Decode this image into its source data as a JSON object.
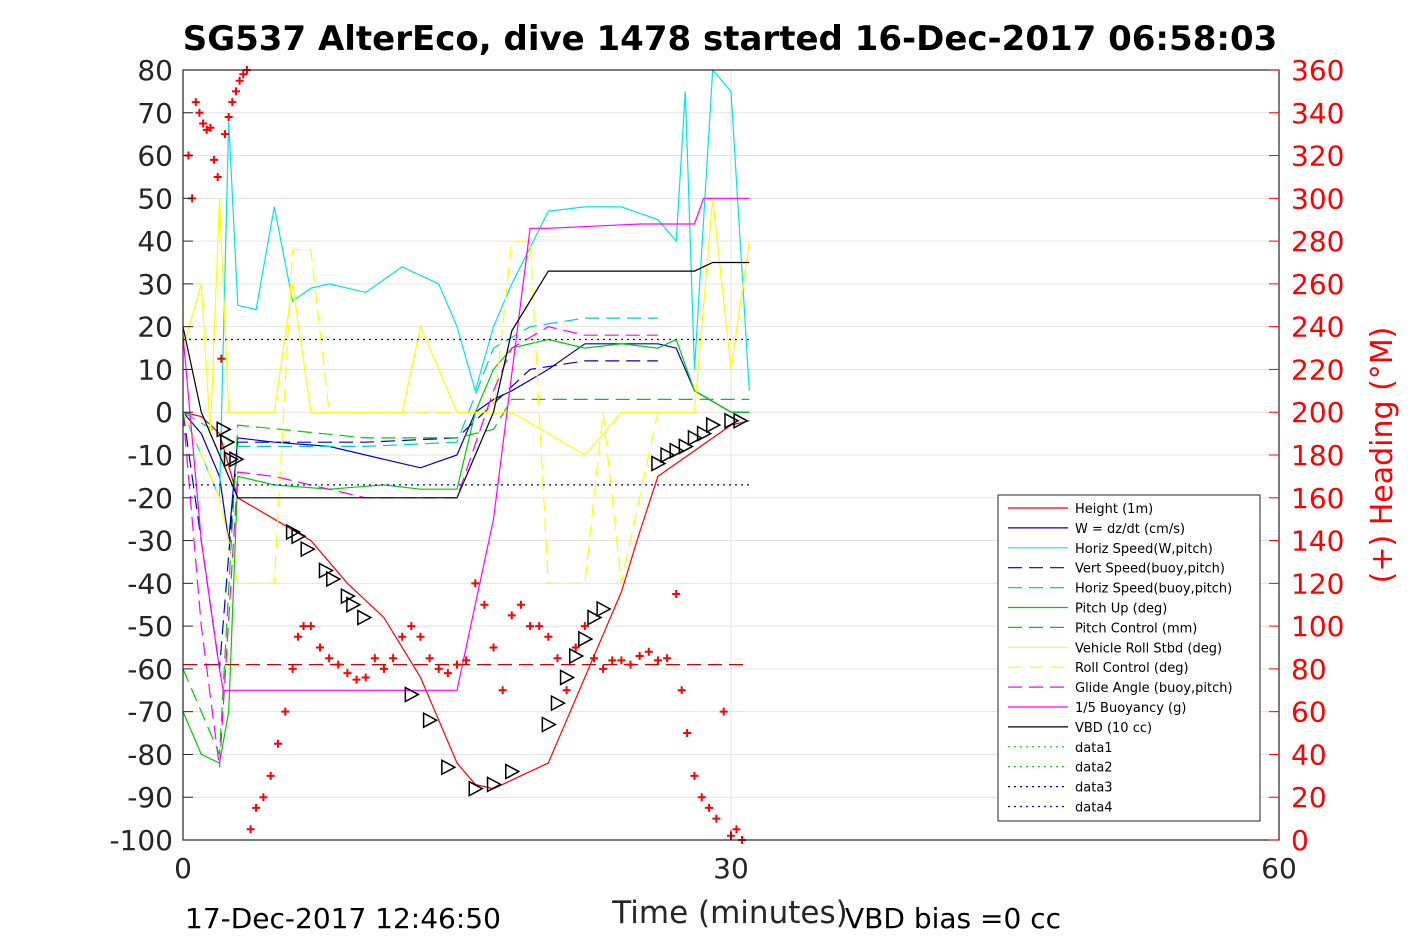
{
  "chart_data": {
    "type": "line",
    "title": "SG537 AlterEco, dive 1478 started 16-Dec-2017 06:58:03",
    "xlabel": "Time (minutes)",
    "ylabel": "",
    "y2label": "(+) Heading (°M)",
    "xlim": [
      0,
      60
    ],
    "ylim": [
      -100,
      80
    ],
    "y2lim": [
      0,
      360
    ],
    "xticks": [
      "0",
      "30",
      "60"
    ],
    "yticks": [
      "80",
      "70",
      "60",
      "50",
      "40",
      "30",
      "20",
      "10",
      "0",
      "-10",
      "-20",
      "-30",
      "-40",
      "-50",
      "-60",
      "-70",
      "-80",
      "-90",
      "-100"
    ],
    "y2ticks": [
      "360",
      "340",
      "320",
      "300",
      "280",
      "260",
      "240",
      "220",
      "200",
      "180",
      "160",
      "140",
      "120",
      "100",
      "80",
      "60",
      "40",
      "20",
      "0"
    ],
    "grid": true,
    "legend_position": "lower-right",
    "footer_left": "17-Dec-2017 12:46:50",
    "footer_right": "VBD bias =0 cc",
    "series": [
      {
        "name": "Height (1m)",
        "color": "#ff0000",
        "style": "solid",
        "x": [
          0,
          1,
          2,
          3,
          5,
          7,
          9,
          11,
          13,
          15,
          16,
          17,
          18,
          20,
          21,
          22,
          23,
          24,
          25,
          26,
          27,
          28,
          29,
          30,
          31
        ],
        "y": [
          0,
          -1,
          -5,
          -20,
          -25,
          -30,
          -40,
          -48,
          -62,
          -82,
          -87,
          -88,
          -86,
          -82,
          -72,
          -62,
          -52,
          -42,
          -28,
          -15,
          -12,
          -9,
          -6,
          -3,
          -2
        ]
      },
      {
        "name": "W = dz/dt (cm/s)",
        "color": "#0000cc",
        "style": "solid",
        "x": [
          0,
          1,
          2,
          2.5,
          3,
          5,
          8,
          11,
          13,
          15,
          16,
          17,
          18,
          20,
          22,
          24,
          26,
          27,
          28,
          30,
          31
        ],
        "y": [
          0,
          -5,
          -15,
          -30,
          -6,
          -7,
          -8,
          -11,
          -13,
          -10,
          0,
          3,
          5,
          10,
          16,
          16,
          16,
          15,
          5,
          0,
          0
        ]
      },
      {
        "name": "Horiz Speed(W,pitch)",
        "color": "#00e5e5",
        "style": "solid",
        "x": [
          0,
          1,
          2,
          2.5,
          3,
          4,
          5,
          6,
          7,
          8,
          10,
          12,
          14,
          15,
          16,
          17,
          18,
          20,
          22,
          24,
          26,
          27,
          27.5,
          28,
          29,
          30,
          31
        ],
        "y": [
          0,
          -10,
          -20,
          68,
          25,
          24,
          48,
          26,
          29,
          30,
          28,
          34,
          30,
          20,
          5,
          20,
          30,
          47,
          48,
          48,
          45,
          40,
          75,
          10,
          80,
          75,
          5
        ]
      },
      {
        "name": "Vert Speed(buoy,pitch)",
        "color": "#0000cc",
        "style": "dashed",
        "x": [
          0,
          2,
          3,
          5,
          10,
          15,
          17,
          19,
          22,
          26
        ],
        "y": [
          0,
          -60,
          -7,
          -7,
          -7,
          -6,
          2,
          10,
          12,
          12
        ]
      },
      {
        "name": "Horiz Speed(buoy,pitch)",
        "color": "#00cccc",
        "style": "dashed",
        "x": [
          0,
          2,
          3,
          5,
          10,
          15,
          17,
          19,
          22,
          26
        ],
        "y": [
          0,
          -5,
          -8,
          -8,
          -8,
          -7,
          15,
          20,
          22,
          22
        ]
      },
      {
        "name": "Pitch Up (deg)",
        "color": "#00cc00",
        "style": "solid",
        "x": [
          0,
          1,
          2,
          2.5,
          3,
          5,
          8,
          11,
          13,
          15,
          16,
          17,
          18,
          20,
          22,
          24,
          26,
          27,
          28,
          30,
          31
        ],
        "y": [
          -70,
          -80,
          -82,
          -70,
          -15,
          -17,
          -18,
          -17,
          -18,
          -18,
          0,
          10,
          15,
          17,
          15,
          16,
          15,
          17,
          5,
          0,
          0
        ]
      },
      {
        "name": "Pitch Control (mm)",
        "color": "#00cc00",
        "style": "dashed",
        "x": [
          0,
          2,
          3,
          10,
          15,
          17,
          18,
          26,
          27,
          31
        ],
        "y": [
          -60,
          -80,
          -3,
          -6,
          -6,
          -4,
          3,
          3,
          3,
          3
        ]
      },
      {
        "name": "Vehicle Roll Stbd (deg)",
        "color": "#ffff00",
        "style": "solid",
        "x": [
          0,
          1,
          1.5,
          2,
          2.5,
          3,
          5,
          6,
          7,
          8,
          10,
          12,
          13,
          15,
          16,
          18,
          20,
          22,
          24,
          26,
          28,
          29,
          30,
          31
        ],
        "y": [
          15,
          30,
          -5,
          50,
          0,
          0,
          0,
          30,
          0,
          0,
          0,
          0,
          20,
          0,
          0,
          0,
          -5,
          -10,
          0,
          0,
          0,
          50,
          10,
          40
        ]
      },
      {
        "name": "Roll Control (deg)",
        "color": "#ffff00",
        "style": "dashed",
        "x": [
          0,
          2,
          3,
          5,
          6,
          7,
          8,
          10,
          12,
          13,
          15,
          17,
          18,
          19,
          20,
          22,
          23,
          24,
          26
        ],
        "y": [
          0,
          -20,
          -40,
          -40,
          38,
          38,
          0,
          0,
          0,
          0,
          0,
          0,
          40,
          40,
          -40,
          -40,
          0,
          -40,
          0
        ]
      },
      {
        "name": "Glide Angle (buoy,pitch)",
        "color": "#ff00ff",
        "style": "dashed",
        "x": [
          0,
          1,
          2,
          3,
          5,
          10,
          15,
          17,
          18,
          20,
          22,
          26
        ],
        "y": [
          0,
          -50,
          -83,
          -14,
          -15,
          -20,
          -20,
          5,
          15,
          20,
          18,
          18
        ]
      },
      {
        "name": "1/5 Buoyancy (g)",
        "color": "#ff00ff",
        "style": "solid",
        "x": [
          0,
          1,
          2,
          2.2,
          12,
          15,
          17,
          19,
          20,
          25,
          28,
          28.5,
          31
        ],
        "y": [
          18,
          -30,
          -60,
          -65,
          -65,
          -65,
          -25,
          43,
          43,
          44,
          44,
          50,
          50
        ]
      },
      {
        "name": "VBD (10 cc)",
        "color": "#000000",
        "style": "solid",
        "x": [
          0,
          1,
          2,
          3,
          15,
          16,
          17,
          18,
          19,
          20,
          28,
          29,
          31
        ],
        "y": [
          20,
          0,
          -10,
          -20,
          -20,
          -10,
          0,
          19,
          26,
          33,
          33,
          35,
          35
        ]
      },
      {
        "name": "data1",
        "color": "#00cc00",
        "style": "dotted",
        "x": [],
        "y": []
      },
      {
        "name": "data2",
        "color": "#00cc00",
        "style": "dotted",
        "x": [],
        "y": []
      },
      {
        "name": "data3",
        "color": "#0000cc",
        "style": "dotted",
        "x": [
          0,
          31
        ],
        "y": [
          17,
          17
        ]
      },
      {
        "name": "data4",
        "color": "#0000cc",
        "style": "dotted",
        "x": [
          0,
          31
        ],
        "y": [
          -17,
          -17
        ]
      }
    ],
    "reference_lines": [
      {
        "color": "#cc0000",
        "style": "dashed",
        "y": -59,
        "x": [
          0,
          31
        ]
      }
    ],
    "heading_points": {
      "color": "#ff0000",
      "marker": "+",
      "x": [
        0.3,
        0.5,
        0.7,
        0.9,
        1.1,
        1.3,
        1.5,
        1.7,
        1.9,
        2.1,
        2.3,
        2.5,
        2.7,
        2.9,
        3.1,
        3.3,
        3.5,
        3.7,
        4.0,
        4.4,
        4.8,
        5.2,
        5.6,
        6.0,
        6.3,
        6.6,
        7.0,
        7.5,
        8.0,
        8.5,
        9.0,
        9.5,
        10.0,
        10.5,
        11.0,
        11.5,
        12.0,
        12.5,
        13.0,
        13.5,
        14.0,
        14.5,
        15.0,
        15.5,
        16.0,
        16.5,
        17.0,
        17.5,
        18.0,
        18.5,
        19.0,
        19.5,
        20.0,
        20.5,
        21.0,
        21.5,
        22.0,
        22.5,
        23.0,
        23.5,
        24.0,
        24.5,
        25.0,
        25.5,
        26.0,
        26.5,
        27.0,
        27.3,
        27.6,
        28.0,
        28.4,
        28.8,
        29.2,
        29.6,
        30.0,
        30.3,
        30.6
      ],
      "y": [
        320,
        300,
        345,
        340,
        335,
        332,
        333,
        318,
        310,
        225,
        330,
        338,
        345,
        350,
        355,
        358,
        360,
        5,
        15,
        20,
        30,
        45,
        60,
        80,
        95,
        100,
        100,
        90,
        85,
        82,
        78,
        75,
        76,
        85,
        80,
        85,
        95,
        100,
        95,
        85,
        80,
        78,
        82,
        84,
        120,
        110,
        90,
        70,
        105,
        110,
        100,
        100,
        95,
        85,
        70,
        90,
        100,
        85,
        80,
        84,
        84,
        82,
        86,
        88,
        84,
        85,
        115,
        70,
        50,
        30,
        20,
        15,
        10,
        60,
        2,
        5,
        0
      ]
    },
    "triangle_markers": {
      "color": "#000000",
      "x": [
        2.2,
        2.4,
        2.6,
        2.9,
        6.0,
        6.3,
        6.8,
        7.8,
        8.2,
        9.0,
        9.3,
        9.9,
        12.5,
        13.5,
        14.5,
        16.0,
        17.0,
        18.0,
        20.0,
        20.5,
        21.0,
        21.5,
        22.0,
        22.5,
        23.0,
        26.0,
        26.5,
        27.0,
        27.5,
        28.0,
        28.5,
        29.0,
        30.0,
        30.5
      ],
      "y": [
        -4,
        -7,
        -11,
        -11,
        -28,
        -29,
        -32,
        -37,
        -39,
        -43,
        -45,
        -48,
        -66,
        -72,
        -83,
        -88,
        -87,
        -84,
        -73,
        -68,
        -62,
        -57,
        -53,
        -48,
        -46,
        -12,
        -10,
        -9,
        -8,
        -6,
        -5,
        -3,
        -2,
        -2
      ]
    }
  }
}
